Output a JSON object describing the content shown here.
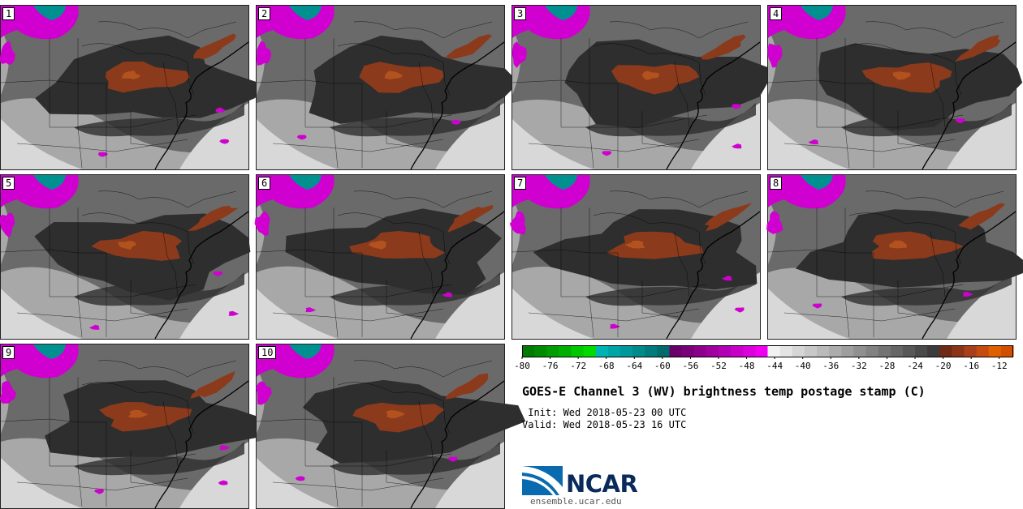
{
  "members": [
    "1",
    "2",
    "3",
    "4",
    "5",
    "6",
    "7",
    "8",
    "9",
    "10"
  ],
  "colorbar": {
    "tick_labels": [
      "-80",
      "-76",
      "-72",
      "-68",
      "-64",
      "-60",
      "-56",
      "-52",
      "-48",
      "-44",
      "-40",
      "-36",
      "-32",
      "-28",
      "-24",
      "-20",
      "-16",
      "-12"
    ],
    "min": -80,
    "max": -10,
    "step": 2,
    "colors": [
      "#007a00",
      "#008a00",
      "#009c00",
      "#00b000",
      "#00c800",
      "#00dc00",
      "#00b4b4",
      "#00a6a6",
      "#009898",
      "#008a8a",
      "#007a7a",
      "#006b6b",
      "#6a006a",
      "#7a007a",
      "#8c008c",
      "#a000a0",
      "#b400b4",
      "#c800c8",
      "#dc00dc",
      "#f000f0",
      "#f2f2f2",
      "#e4e4e4",
      "#d6d6d6",
      "#c8c8c8",
      "#bababa",
      "#acacac",
      "#9e9e9e",
      "#909090",
      "#828282",
      "#747474",
      "#666666",
      "#585858",
      "#4a4a4a",
      "#3c3c3c",
      "#6e2a14",
      "#8a3418",
      "#a8401c",
      "#c44c10",
      "#e06000",
      "#d05000"
    ]
  },
  "title": "GOES-E Channel 3 (WV) brightness temp postage stamp (C)",
  "init_line": " Init: Wed 2018-05-23 00 UTC",
  "valid_line": "Valid: Wed 2018-05-23 16 UTC",
  "logo": {
    "name": "NCAR",
    "url": "ensemble.ucar.edu"
  },
  "palette": {
    "dry": "#2e2e2e",
    "mid": "#6a6a6a",
    "moist": "#a8a8a8",
    "very_moist": "#d8d8d8",
    "warm": "#8c3a1c",
    "warm_core": "#b2521e",
    "cold_cloud": "#d000d0",
    "cold_cloud_top": "#009090",
    "map_lines": "#000000"
  }
}
